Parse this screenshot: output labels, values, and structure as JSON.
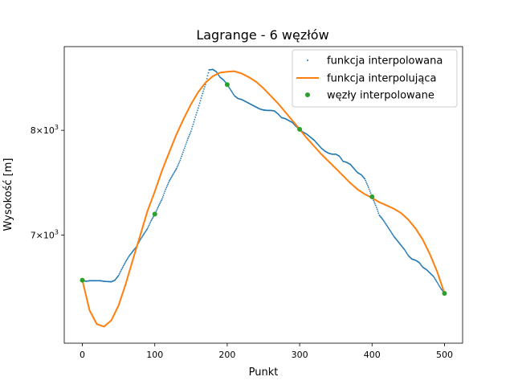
{
  "chart_data": {
    "type": "line",
    "title": "Lagrange - 6 węzłów",
    "xlabel": "Punkt",
    "ylabel": "Wysokość [m]",
    "xlim": [
      -25,
      525
    ],
    "ylim": [
      6100,
      8900
    ],
    "yscale": "log",
    "x_ticks": [
      {
        "value": 0,
        "label": "0"
      },
      {
        "value": 100,
        "label": "100"
      },
      {
        "value": 200,
        "label": "200"
      },
      {
        "value": 300,
        "label": "300"
      },
      {
        "value": 400,
        "label": "400"
      },
      {
        "value": 500,
        "label": "500"
      }
    ],
    "y_ticks": [
      {
        "value": 7000,
        "mantissa": "7",
        "base": "10",
        "exp": "3"
      },
      {
        "value": 8000,
        "mantissa": "8",
        "base": "10",
        "exp": "3"
      }
    ],
    "grid": false,
    "legend_position": "upper-right",
    "series": [
      {
        "name": "funkcja interpolowana",
        "style": "dots",
        "color": "#1f77b4",
        "points": [
          [
            0,
            6610
          ],
          [
            5,
            6600
          ],
          [
            10,
            6605
          ],
          [
            15,
            6605
          ],
          [
            20,
            6605
          ],
          [
            25,
            6605
          ],
          [
            30,
            6600
          ],
          [
            35,
            6598
          ],
          [
            40,
            6596
          ],
          [
            45,
            6610
          ],
          [
            50,
            6650
          ],
          [
            55,
            6710
          ],
          [
            60,
            6770
          ],
          [
            65,
            6820
          ],
          [
            70,
            6860
          ],
          [
            75,
            6900
          ],
          [
            80,
            6960
          ],
          [
            85,
            7010
          ],
          [
            90,
            7060
          ],
          [
            95,
            7130
          ],
          [
            100,
            7190
          ],
          [
            105,
            7260
          ],
          [
            110,
            7330
          ],
          [
            115,
            7420
          ],
          [
            120,
            7500
          ],
          [
            125,
            7560
          ],
          [
            130,
            7620
          ],
          [
            135,
            7700
          ],
          [
            140,
            7800
          ],
          [
            145,
            7900
          ],
          [
            150,
            7990
          ],
          [
            155,
            8110
          ],
          [
            160,
            8230
          ],
          [
            165,
            8360
          ],
          [
            170,
            8480
          ],
          [
            175,
            8640
          ],
          [
            180,
            8645
          ],
          [
            185,
            8620
          ],
          [
            190,
            8560
          ],
          [
            195,
            8530
          ],
          [
            200,
            8480
          ],
          [
            205,
            8420
          ],
          [
            210,
            8360
          ],
          [
            215,
            8330
          ],
          [
            220,
            8320
          ],
          [
            225,
            8300
          ],
          [
            230,
            8280
          ],
          [
            235,
            8260
          ],
          [
            240,
            8240
          ],
          [
            245,
            8220
          ],
          [
            250,
            8210
          ],
          [
            255,
            8205
          ],
          [
            260,
            8205
          ],
          [
            265,
            8200
          ],
          [
            270,
            8170
          ],
          [
            275,
            8130
          ],
          [
            280,
            8120
          ],
          [
            285,
            8100
          ],
          [
            290,
            8080
          ],
          [
            295,
            8040
          ],
          [
            300,
            8010
          ],
          [
            305,
            7980
          ],
          [
            310,
            7960
          ],
          [
            315,
            7930
          ],
          [
            320,
            7900
          ],
          [
            325,
            7860
          ],
          [
            330,
            7820
          ],
          [
            335,
            7790
          ],
          [
            340,
            7770
          ],
          [
            345,
            7760
          ],
          [
            350,
            7760
          ],
          [
            355,
            7740
          ],
          [
            360,
            7690
          ],
          [
            365,
            7680
          ],
          [
            370,
            7660
          ],
          [
            375,
            7620
          ],
          [
            380,
            7580
          ],
          [
            385,
            7560
          ],
          [
            390,
            7520
          ],
          [
            395,
            7440
          ],
          [
            400,
            7350
          ],
          [
            405,
            7270
          ],
          [
            410,
            7180
          ],
          [
            415,
            7140
          ],
          [
            420,
            7090
          ],
          [
            425,
            7040
          ],
          [
            430,
            6990
          ],
          [
            435,
            6950
          ],
          [
            440,
            6910
          ],
          [
            445,
            6870
          ],
          [
            450,
            6820
          ],
          [
            455,
            6790
          ],
          [
            460,
            6780
          ],
          [
            465,
            6760
          ],
          [
            470,
            6720
          ],
          [
            475,
            6700
          ],
          [
            480,
            6670
          ],
          [
            485,
            6640
          ],
          [
            490,
            6590
          ],
          [
            495,
            6540
          ],
          [
            500,
            6500
          ]
        ]
      },
      {
        "name": "funkcja interpolująca",
        "style": "line",
        "color": "#ff7f0e",
        "points": [
          [
            0,
            6610
          ],
          [
            10,
            6360
          ],
          [
            20,
            6250
          ],
          [
            30,
            6230
          ],
          [
            40,
            6280
          ],
          [
            50,
            6400
          ],
          [
            60,
            6580
          ],
          [
            70,
            6790
          ],
          [
            80,
            7000
          ],
          [
            90,
            7220
          ],
          [
            100,
            7400
          ],
          [
            110,
            7600
          ],
          [
            120,
            7780
          ],
          [
            130,
            7960
          ],
          [
            140,
            8120
          ],
          [
            150,
            8270
          ],
          [
            160,
            8400
          ],
          [
            170,
            8500
          ],
          [
            180,
            8570
          ],
          [
            190,
            8610
          ],
          [
            200,
            8620
          ],
          [
            210,
            8625
          ],
          [
            220,
            8600
          ],
          [
            230,
            8560
          ],
          [
            240,
            8510
          ],
          [
            250,
            8440
          ],
          [
            260,
            8360
          ],
          [
            270,
            8280
          ],
          [
            280,
            8190
          ],
          [
            290,
            8100
          ],
          [
            300,
            8010
          ],
          [
            310,
            7920
          ],
          [
            320,
            7840
          ],
          [
            330,
            7760
          ],
          [
            340,
            7690
          ],
          [
            350,
            7620
          ],
          [
            360,
            7550
          ],
          [
            370,
            7480
          ],
          [
            380,
            7420
          ],
          [
            390,
            7375
          ],
          [
            400,
            7340
          ],
          [
            410,
            7300
          ],
          [
            420,
            7270
          ],
          [
            430,
            7240
          ],
          [
            440,
            7200
          ],
          [
            450,
            7140
          ],
          [
            460,
            7060
          ],
          [
            470,
            6960
          ],
          [
            480,
            6830
          ],
          [
            490,
            6680
          ],
          [
            500,
            6500
          ]
        ]
      },
      {
        "name": "węzły interpolowane",
        "style": "markers",
        "color": "#2ca02c",
        "points": [
          [
            0,
            6610
          ],
          [
            100,
            7190
          ],
          [
            200,
            8480
          ],
          [
            300,
            8010
          ],
          [
            400,
            7350
          ],
          [
            500,
            6500
          ]
        ]
      }
    ]
  }
}
